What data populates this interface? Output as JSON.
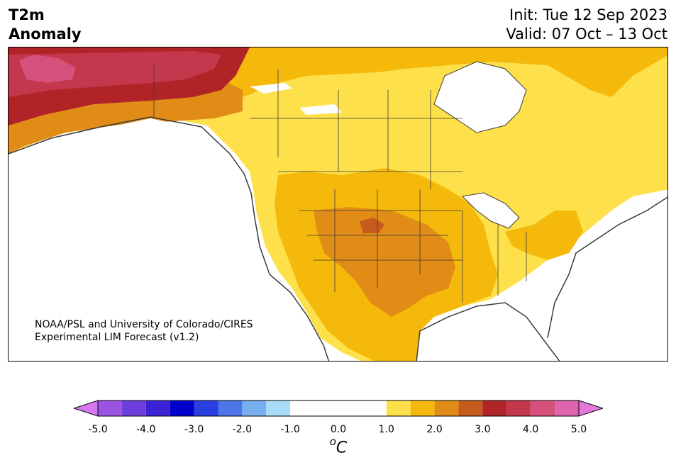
{
  "header": {
    "title_line1": "T2m",
    "title_line2": "Anomaly",
    "init": "Init: Tue 12 Sep 2023",
    "valid": "Valid: 07 Oct – 13 Oct"
  },
  "credit": {
    "line1": "NOAA/PSL and University of Colorado/CIRES",
    "line2": "Experimental LIM Forecast (v1.2)"
  },
  "colorbar": {
    "unit_base": "C",
    "unit_sup": "o",
    "ticks": [
      "-5.0",
      "-4.0",
      "-3.0",
      "-2.0",
      "-1.0",
      "0.0",
      "1.0",
      "2.0",
      "3.0",
      "4.0",
      "5.0"
    ],
    "bins": [
      {
        "range": [
          -5.0,
          -4.5
        ],
        "color": "#9a53e0"
      },
      {
        "range": [
          -4.5,
          -4.0
        ],
        "color": "#6d3ddb"
      },
      {
        "range": [
          -4.0,
          -3.5
        ],
        "color": "#3b22d4"
      },
      {
        "range": [
          -3.5,
          -3.0
        ],
        "color": "#0000cd"
      },
      {
        "range": [
          -3.0,
          -2.5
        ],
        "color": "#2a3fe0"
      },
      {
        "range": [
          -2.5,
          -2.0
        ],
        "color": "#4d74e8"
      },
      {
        "range": [
          -2.0,
          -1.5
        ],
        "color": "#76aef0"
      },
      {
        "range": [
          -1.5,
          -1.0
        ],
        "color": "#a9dcf8"
      },
      {
        "range": [
          -1.0,
          0.0
        ],
        "color": "#ffffff"
      },
      {
        "range": [
          0.0,
          1.0
        ],
        "color": "#ffffff"
      },
      {
        "range": [
          1.0,
          1.5
        ],
        "color": "#fee04a"
      },
      {
        "range": [
          1.5,
          2.0
        ],
        "color": "#f4b90b"
      },
      {
        "range": [
          2.0,
          2.5
        ],
        "color": "#e08c17"
      },
      {
        "range": [
          2.5,
          3.0
        ],
        "color": "#c45a1c"
      },
      {
        "range": [
          3.0,
          3.5
        ],
        "color": "#b02428"
      },
      {
        "range": [
          3.5,
          4.0
        ],
        "color": "#c4384d"
      },
      {
        "range": [
          4.0,
          4.5
        ],
        "color": "#d6507c"
      },
      {
        "range": [
          4.5,
          5.0
        ],
        "color": "#de64ad"
      }
    ],
    "under_color": "#d877f0",
    "over_color": "#e678dc"
  },
  "map": {
    "region": "North America",
    "variable": "2 m temperature anomaly",
    "ocean_color": "#ffffff",
    "coast_color": "#3a3a3a"
  }
}
